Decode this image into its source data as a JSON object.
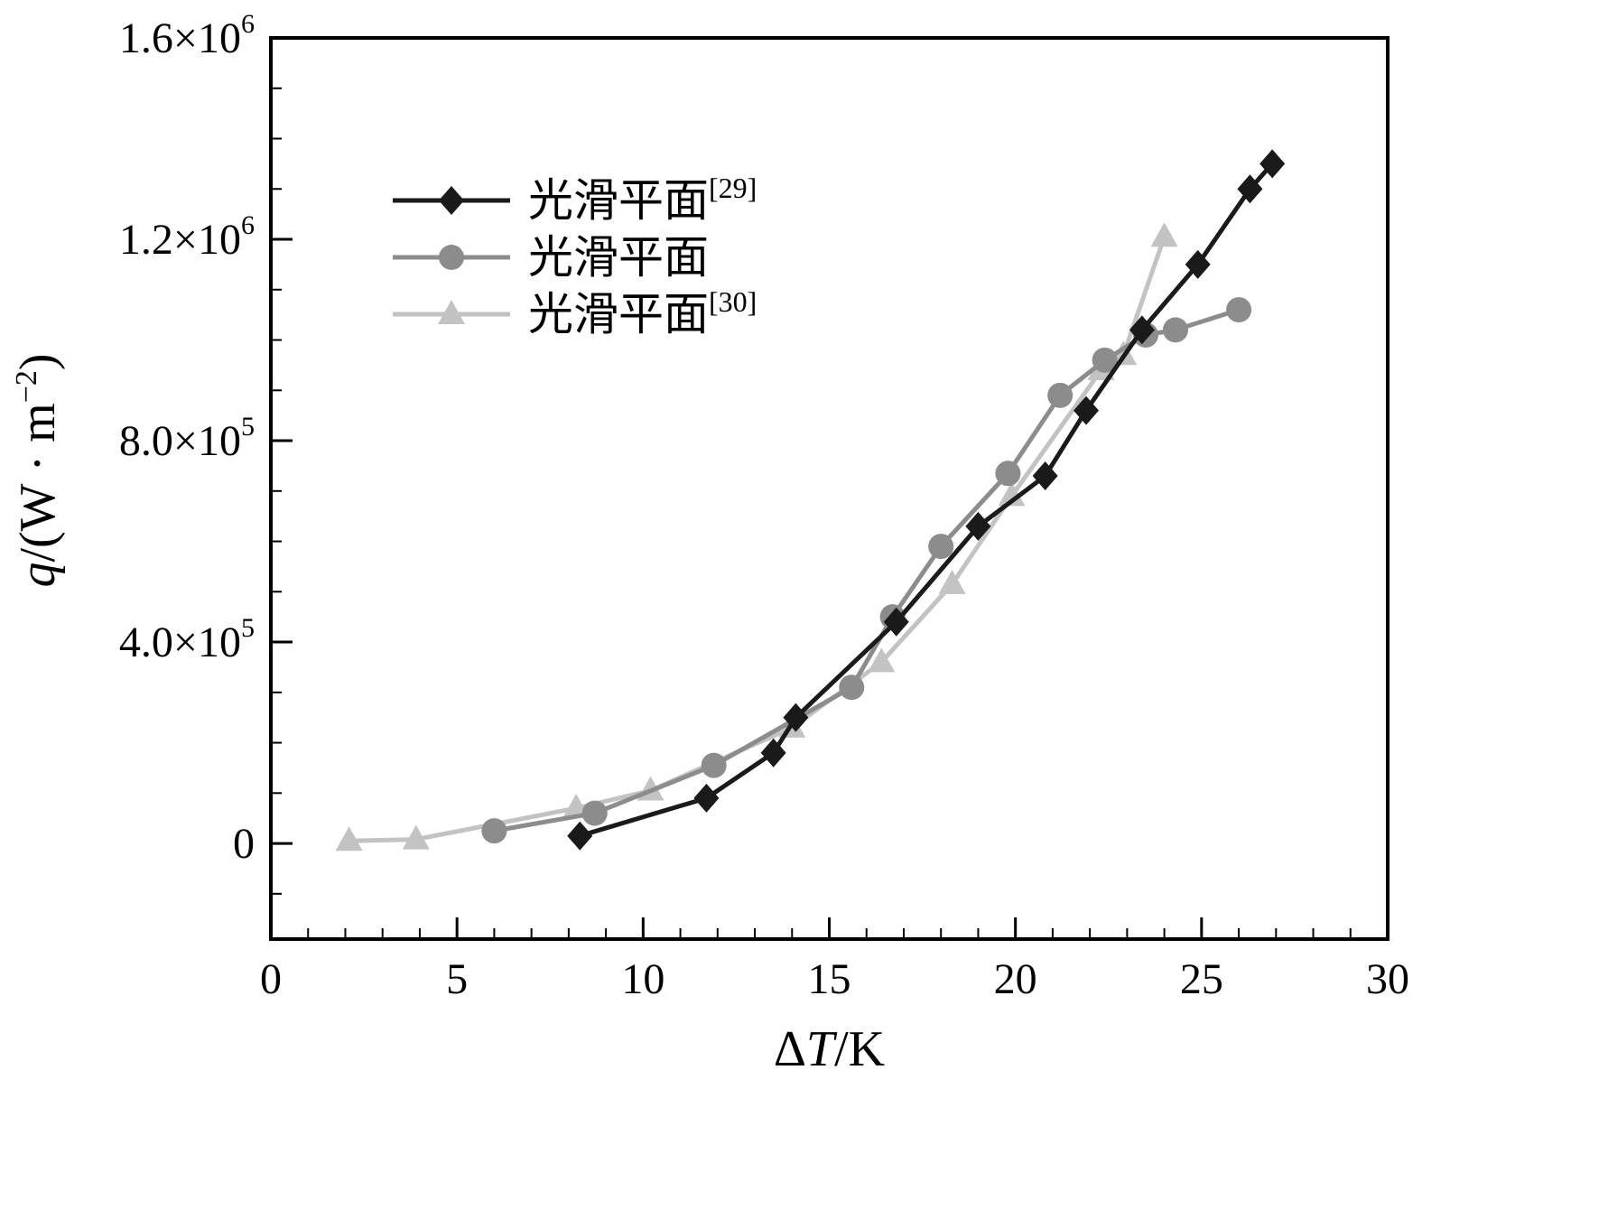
{
  "figure": {
    "background": "#ffffff",
    "axis_color": "#000000"
  },
  "chart_data": {
    "type": "line",
    "title": "",
    "xlabel": {
      "prefix": "Δ",
      "italic": "T",
      "rest": "/K"
    },
    "ylabel": {
      "italic": "q",
      "rest": "/(W · m",
      "sup": "−2",
      "close": ")"
    },
    "xlim": [
      0,
      30
    ],
    "ylim": [
      -190000,
      1600000
    ],
    "x_ticks": [
      0,
      5,
      10,
      15,
      20,
      25,
      30
    ],
    "x_minor_step": 1,
    "y_ticks": [
      {
        "value": 0,
        "base": "0",
        "exp": ""
      },
      {
        "value": 400000,
        "base": "4.0×10",
        "exp": "5"
      },
      {
        "value": 800000,
        "base": "8.0×10",
        "exp": "5"
      },
      {
        "value": 1200000,
        "base": "1.2×10",
        "exp": "6"
      },
      {
        "value": 1600000,
        "base": "1.6×10",
        "exp": "6"
      }
    ],
    "y_minor_step": 100000,
    "grid": false,
    "legend_position": "upper-left",
    "series": [
      {
        "name": "光滑平面",
        "sup": "[29]",
        "marker": "diamond",
        "color": "#1a1a1a",
        "points": [
          [
            8.3,
            15000
          ],
          [
            11.7,
            90000
          ],
          [
            13.5,
            180000
          ],
          [
            14.1,
            250000
          ],
          [
            16.8,
            440000
          ],
          [
            19.0,
            630000
          ],
          [
            20.8,
            730000
          ],
          [
            21.9,
            860000
          ],
          [
            23.4,
            1020000
          ],
          [
            24.9,
            1150000
          ],
          [
            26.3,
            1300000
          ],
          [
            26.9,
            1350000
          ]
        ]
      },
      {
        "name": "光滑平面",
        "sup": "",
        "marker": "circle",
        "color": "#8c8c8c",
        "points": [
          [
            6.0,
            25000
          ],
          [
            8.7,
            60000
          ],
          [
            11.9,
            155000
          ],
          [
            15.6,
            310000
          ],
          [
            16.7,
            450000
          ],
          [
            18.0,
            590000
          ],
          [
            19.8,
            735000
          ],
          [
            21.2,
            890000
          ],
          [
            22.4,
            960000
          ],
          [
            23.5,
            1010000
          ],
          [
            24.3,
            1020000
          ],
          [
            26.0,
            1060000
          ]
        ]
      },
      {
        "name": "光滑平面",
        "sup": "[30]",
        "marker": "triangle",
        "color": "#c3c3c3",
        "points": [
          [
            2.1,
            5000
          ],
          [
            3.9,
            8000
          ],
          [
            8.2,
            70000
          ],
          [
            10.2,
            105000
          ],
          [
            14.0,
            230000
          ],
          [
            16.4,
            360000
          ],
          [
            18.3,
            515000
          ],
          [
            19.9,
            690000
          ],
          [
            22.3,
            940000
          ],
          [
            22.9,
            970000
          ],
          [
            24.0,
            1205000
          ]
        ]
      }
    ]
  }
}
